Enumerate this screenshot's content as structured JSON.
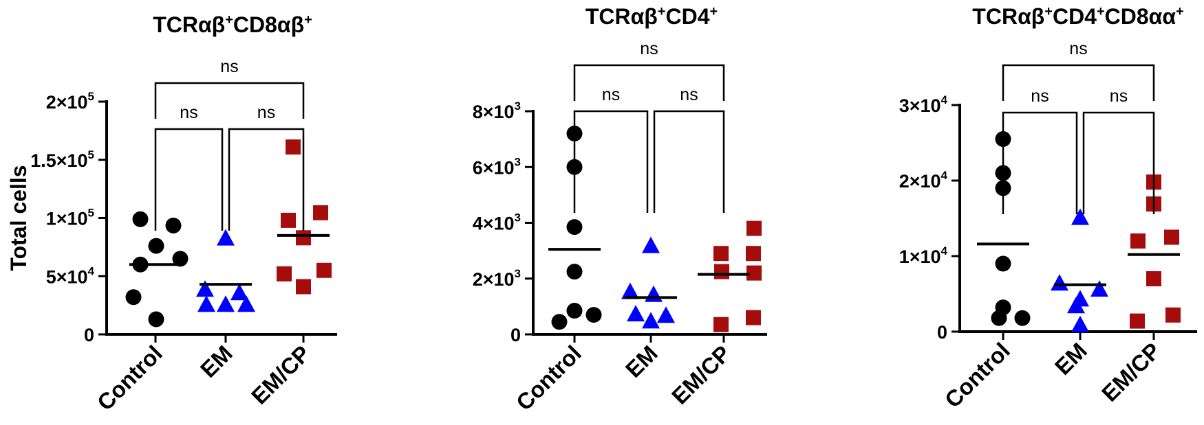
{
  "chart_data": [
    {
      "type": "scatter",
      "title": {
        "parts": [
          {
            "t": "TCR",
            "sup": false
          },
          {
            "t": "αβ",
            "sup": false
          },
          {
            "t": "+",
            "sup": true
          },
          {
            "t": "CD8",
            "sup": false
          },
          {
            "t": "αβ",
            "sup": false
          },
          {
            "t": "+",
            "sup": true
          }
        ]
      },
      "ylabel": "Total cells",
      "categories": [
        "Control",
        "EM",
        "EM/CP"
      ],
      "ylim": [
        0,
        200000
      ],
      "yticks": [
        {
          "value": 0,
          "base": "0",
          "exp": ""
        },
        {
          "value": 50000,
          "base": "5×10",
          "exp": "4"
        },
        {
          "value": 100000,
          "base": "1×10",
          "exp": "5"
        },
        {
          "value": 150000,
          "base": "1.5×10",
          "exp": "5"
        },
        {
          "value": 200000,
          "base": "2×10",
          "exp": "5"
        }
      ],
      "series": [
        {
          "category": "Control",
          "marker": "circle",
          "color": "#000000",
          "values": [
            99000,
            93500,
            76000,
            65000,
            60000,
            32000,
            13000
          ],
          "mean": 60000
        },
        {
          "category": "EM",
          "marker": "triangle",
          "color": "#0000ff",
          "values": [
            82000,
            38000,
            35000,
            25000,
            25000,
            25000
          ],
          "mean": 43000
        },
        {
          "category": "EM/CP",
          "marker": "square",
          "color": "#a50d0d",
          "values": [
            161000,
            104500,
            98000,
            83000,
            55000,
            52000,
            41000
          ],
          "mean": 85000
        }
      ],
      "comparisons": [
        {
          "from": "Control",
          "to": "EM",
          "label": "ns",
          "level": 1
        },
        {
          "from": "EM",
          "to": "EM/CP",
          "label": "ns",
          "level": 1
        },
        {
          "from": "Control",
          "to": "EM/CP",
          "label": "ns",
          "level": 2
        }
      ]
    },
    {
      "type": "scatter",
      "title": {
        "parts": [
          {
            "t": "TCR",
            "sup": false
          },
          {
            "t": "αβ",
            "sup": false
          },
          {
            "t": "+",
            "sup": true
          },
          {
            "t": "CD4",
            "sup": false
          },
          {
            "t": "+",
            "sup": true
          }
        ]
      },
      "ylabel": "",
      "categories": [
        "Control",
        "EM",
        "EM/CP"
      ],
      "ylim": [
        0,
        8000
      ],
      "yticks": [
        {
          "value": 0,
          "base": "0",
          "exp": ""
        },
        {
          "value": 2000,
          "base": "2×10",
          "exp": "3"
        },
        {
          "value": 4000,
          "base": "4×10",
          "exp": "3"
        },
        {
          "value": 6000,
          "base": "6×10",
          "exp": "3"
        },
        {
          "value": 8000,
          "base": "8×10",
          "exp": "3"
        }
      ],
      "series": [
        {
          "category": "Control",
          "marker": "circle",
          "color": "#000000",
          "values": [
            7200,
            6000,
            3850,
            2250,
            850,
            700,
            450
          ],
          "mean": 3050
        },
        {
          "category": "EM",
          "marker": "triangle",
          "color": "#0000ff",
          "values": [
            3150,
            1500,
            1400,
            700,
            650,
            450
          ],
          "mean": 1320
        },
        {
          "category": "EM/CP",
          "marker": "square",
          "color": "#a50d0d",
          "values": [
            3800,
            2900,
            2900,
            2250,
            2200,
            600,
            350
          ],
          "mean": 2150
        }
      ],
      "comparisons": [
        {
          "from": "Control",
          "to": "EM",
          "label": "ns",
          "level": 1
        },
        {
          "from": "EM",
          "to": "EM/CP",
          "label": "ns",
          "level": 1
        },
        {
          "from": "Control",
          "to": "EM/CP",
          "label": "ns",
          "level": 2
        }
      ]
    },
    {
      "type": "scatter",
      "title": {
        "parts": [
          {
            "t": "TCR",
            "sup": false
          },
          {
            "t": "αβ",
            "sup": false
          },
          {
            "t": "+",
            "sup": true
          },
          {
            "t": "CD4",
            "sup": false
          },
          {
            "t": "+",
            "sup": true
          },
          {
            "t": "CD8",
            "sup": false
          },
          {
            "t": "αα",
            "sup": false
          },
          {
            "t": "+",
            "sup": true
          }
        ]
      },
      "ylabel": "",
      "categories": [
        "Control",
        "EM",
        "EM/CP"
      ],
      "ylim": [
        0,
        30000
      ],
      "yticks": [
        {
          "value": 0,
          "base": "0",
          "exp": ""
        },
        {
          "value": 10000,
          "base": "1×10",
          "exp": "4"
        },
        {
          "value": 20000,
          "base": "2×10",
          "exp": "4"
        },
        {
          "value": 30000,
          "base": "3×10",
          "exp": "4"
        }
      ],
      "series": [
        {
          "category": "Control",
          "marker": "circle",
          "color": "#000000",
          "values": [
            25500,
            21000,
            19000,
            9000,
            3200,
            1800,
            1800
          ],
          "mean": 11600
        },
        {
          "category": "EM",
          "marker": "triangle",
          "color": "#0000ff",
          "values": [
            15000,
            6300,
            5500,
            4200,
            3300,
            800
          ],
          "mean": 6200
        },
        {
          "category": "EM/CP",
          "marker": "square",
          "color": "#a50d0d",
          "values": [
            19800,
            16900,
            12500,
            12000,
            7000,
            2200,
            1400
          ],
          "mean": 10200
        }
      ],
      "comparisons": [
        {
          "from": "Control",
          "to": "EM",
          "label": "ns",
          "level": 1
        },
        {
          "from": "EM",
          "to": "EM/CP",
          "label": "ns",
          "level": 1
        },
        {
          "from": "Control",
          "to": "EM/CP",
          "label": "ns",
          "level": 2
        }
      ]
    }
  ]
}
